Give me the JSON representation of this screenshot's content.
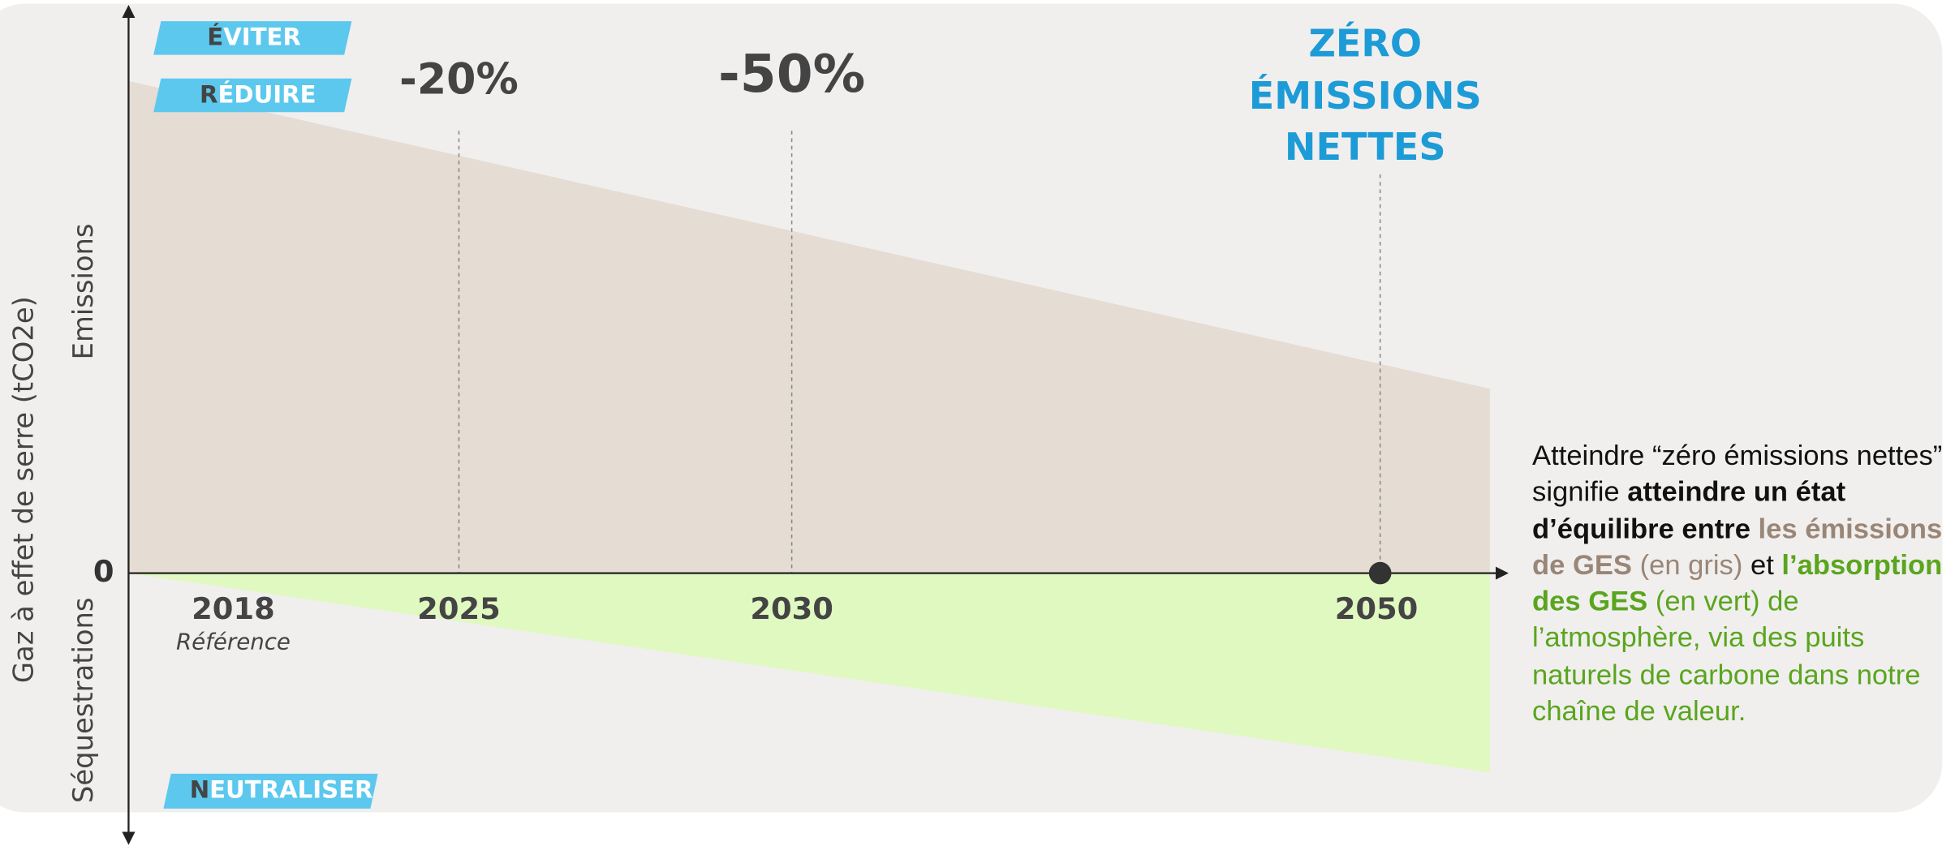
{
  "badges": [
    "ÉVITER",
    "RÉDUIRE",
    "NEUTRALISER"
  ],
  "y_axis": {
    "title": "Gaz à effet de serre (tCO2e)",
    "upper": "Emissions",
    "lower": "Séquestrations",
    "zero": "0"
  },
  "targets": [
    "-20%",
    "-50%"
  ],
  "net_zero": [
    "ZÉRO",
    "ÉMISSIONS",
    "NETTES"
  ],
  "years": [
    "2018",
    "2025",
    "2030",
    "2050"
  ],
  "reference": "Référence",
  "description": [
    "Atteindre “zéro émissions nettes” signifie ",
    "atteindre un état d’équilibre entre ",
    "les émissions de GES",
    " (en gris)",
    " et ",
    "l’absorption des GES",
    " (en vert) de l’atmosphère, via des puits naturels de carbone dans notre chaîne de valeur."
  ]
}
